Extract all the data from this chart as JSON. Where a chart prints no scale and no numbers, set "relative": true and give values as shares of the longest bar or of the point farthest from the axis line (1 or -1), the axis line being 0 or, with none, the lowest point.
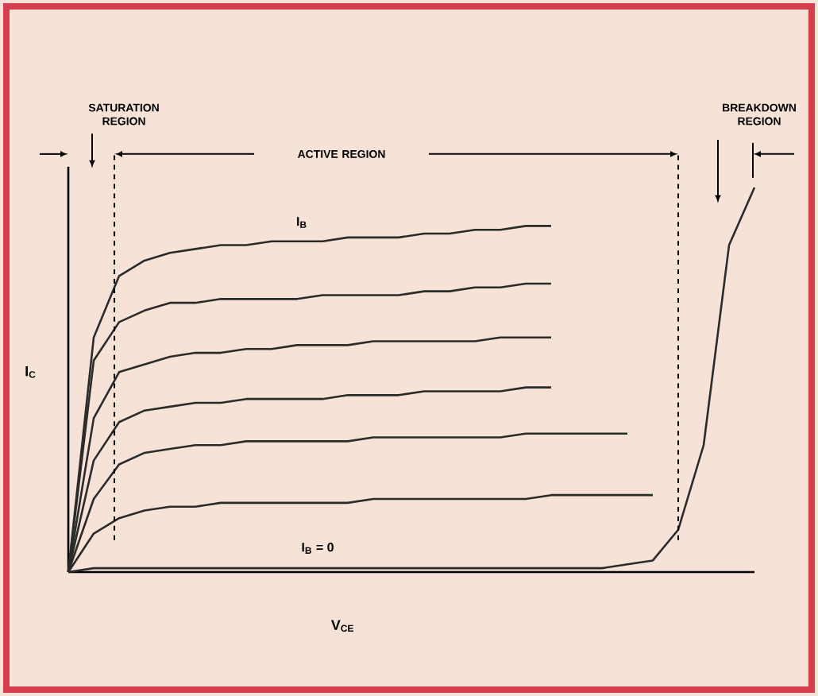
{
  "chart_data": {
    "type": "line",
    "relative": true,
    "xlabel": "V$_{CE}$",
    "ylabel": "I$_{C}$",
    "marker": "none",
    "line_style": "solid",
    "categories": [
      null,
      null,
      null,
      null,
      null,
      null,
      null,
      null,
      null,
      null,
      null,
      null,
      null,
      null,
      null,
      null,
      null,
      null,
      null,
      null,
      null,
      null,
      null,
      null,
      null,
      null,
      null,
      null
    ],
    "series": [
      {
        "color": "#2b2b2b",
        "values": [
          0,
          0.61,
          0.77,
          0.81,
          0.83,
          0.84,
          0.85,
          0.85,
          0.86,
          0.86,
          0.86,
          0.87,
          0.87,
          0.87,
          0.88,
          0.88,
          0.89,
          0.89,
          0.9,
          0.9,
          null,
          null,
          null,
          null,
          null,
          null,
          null,
          null
        ]
      },
      {
        "color": "#2b2b2b",
        "values": [
          0,
          0.55,
          0.65,
          0.68,
          0.7,
          0.7,
          0.71,
          0.71,
          0.71,
          0.71,
          0.72,
          0.72,
          0.72,
          0.72,
          0.73,
          0.73,
          0.74,
          0.74,
          0.75,
          0.75,
          null,
          null,
          null,
          null,
          null,
          null,
          null,
          null
        ]
      },
      {
        "color": "#2b2b2b",
        "values": [
          0,
          0.4,
          0.52,
          0.54,
          0.56,
          0.57,
          0.57,
          0.58,
          0.58,
          0.59,
          0.59,
          0.59,
          0.6,
          0.6,
          0.6,
          0.6,
          0.6,
          0.61,
          0.61,
          0.61,
          null,
          null,
          null,
          null,
          null,
          null,
          null,
          null
        ]
      },
      {
        "color": "#2b2b2b",
        "values": [
          0,
          0.29,
          0.39,
          0.42,
          0.43,
          0.44,
          0.44,
          0.45,
          0.45,
          0.45,
          0.45,
          0.46,
          0.46,
          0.46,
          0.47,
          0.47,
          0.47,
          0.47,
          0.48,
          0.48,
          null,
          null,
          null,
          null,
          null,
          null,
          null,
          null
        ]
      },
      {
        "color": "#2b2b2b",
        "values": [
          0,
          0.19,
          0.28,
          0.31,
          0.32,
          0.33,
          0.33,
          0.34,
          0.34,
          0.34,
          0.34,
          0.34,
          0.35,
          0.35,
          0.35,
          0.35,
          0.35,
          0.35,
          0.36,
          0.36,
          0.36,
          0.36,
          0.36,
          null,
          null,
          null,
          null,
          null
        ]
      },
      {
        "color": "#2b2b2b",
        "values": [
          0,
          0.1,
          0.14,
          0.16,
          0.17,
          0.17,
          0.18,
          0.18,
          0.18,
          0.18,
          0.18,
          0.18,
          0.19,
          0.19,
          0.19,
          0.19,
          0.19,
          0.19,
          0.19,
          0.2,
          0.2,
          0.2,
          0.2,
          0.2,
          null,
          null,
          null,
          null
        ]
      },
      {
        "color": "#2b2b2b",
        "values": [
          0,
          0.01,
          0.01,
          0.01,
          0.01,
          0.01,
          0.01,
          0.01,
          0.01,
          0.01,
          0.01,
          0.01,
          0.01,
          0.01,
          0.01,
          0.01,
          0.01,
          0.01,
          0.01,
          0.01,
          0.01,
          0.01,
          0.02,
          0.03,
          0.11,
          0.33,
          0.85,
          1.0
        ]
      }
    ],
    "annotations": [
      "SATURATION REGION",
      "ACTIVE REGION",
      "BREAKDOWN REGION",
      "I$_{B}$",
      "I$_{B}$ = 0"
    ]
  }
}
